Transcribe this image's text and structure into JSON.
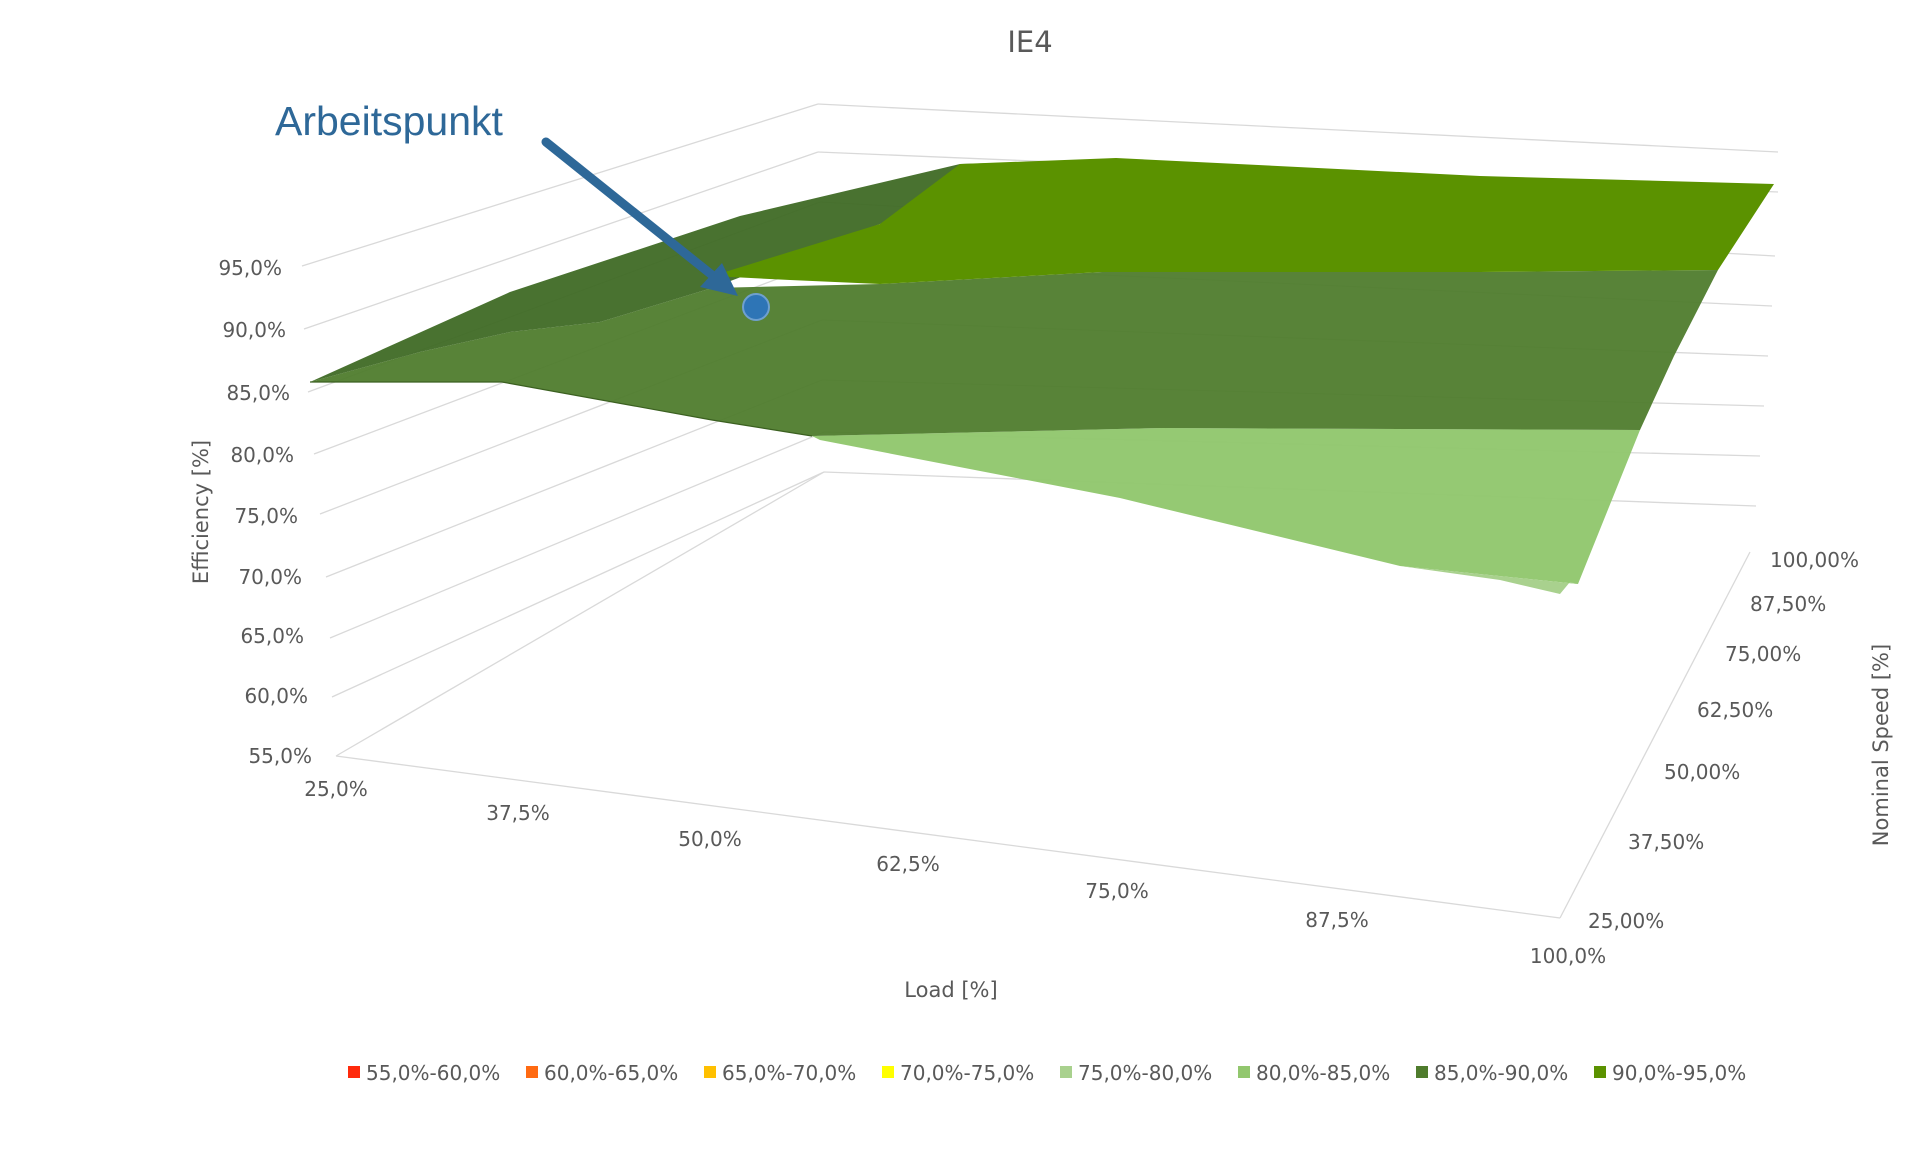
{
  "chart_data": {
    "type": "surface",
    "title": "IE4",
    "xlabel": "Load [%]",
    "ylabel": "Efficiency [%]",
    "zlabel": "Nominal Speed [%]",
    "x_ticks": [
      "25,0%",
      "37,5%",
      "50,0%",
      "62,5%",
      "75,0%",
      "87,5%",
      "100,0%"
    ],
    "y_ticks": [
      "55,0%",
      "60,0%",
      "65,0%",
      "70,0%",
      "75,0%",
      "80,0%",
      "85,0%",
      "90,0%",
      "95,0%"
    ],
    "z_ticks": [
      "25,00%",
      "37,50%",
      "50,00%",
      "62,50%",
      "75,00%",
      "87,50%",
      "100,00%"
    ],
    "ylim": [
      55,
      95
    ],
    "legend": [
      {
        "label": "55,0%-60,0%",
        "color": "#ff2a0c"
      },
      {
        "label": "60,0%-65,0%",
        "color": "#ff6a12"
      },
      {
        "label": "65,0%-70,0%",
        "color": "#ffc000"
      },
      {
        "label": "70,0%-75,0%",
        "color": "#ffff00"
      },
      {
        "label": "75,0%-80,0%",
        "color": "#a9d18e"
      },
      {
        "label": "80,0%-85,0%",
        "color": "#92c76e"
      },
      {
        "label": "85,0%-90,0%",
        "color": "#4f7c2d"
      },
      {
        "label": "90,0%-95,0%",
        "color": "#5b9200"
      }
    ],
    "legend_position": "bottom",
    "annotation": {
      "text": "Arbeitspunkt",
      "color": "#2e6898"
    }
  }
}
